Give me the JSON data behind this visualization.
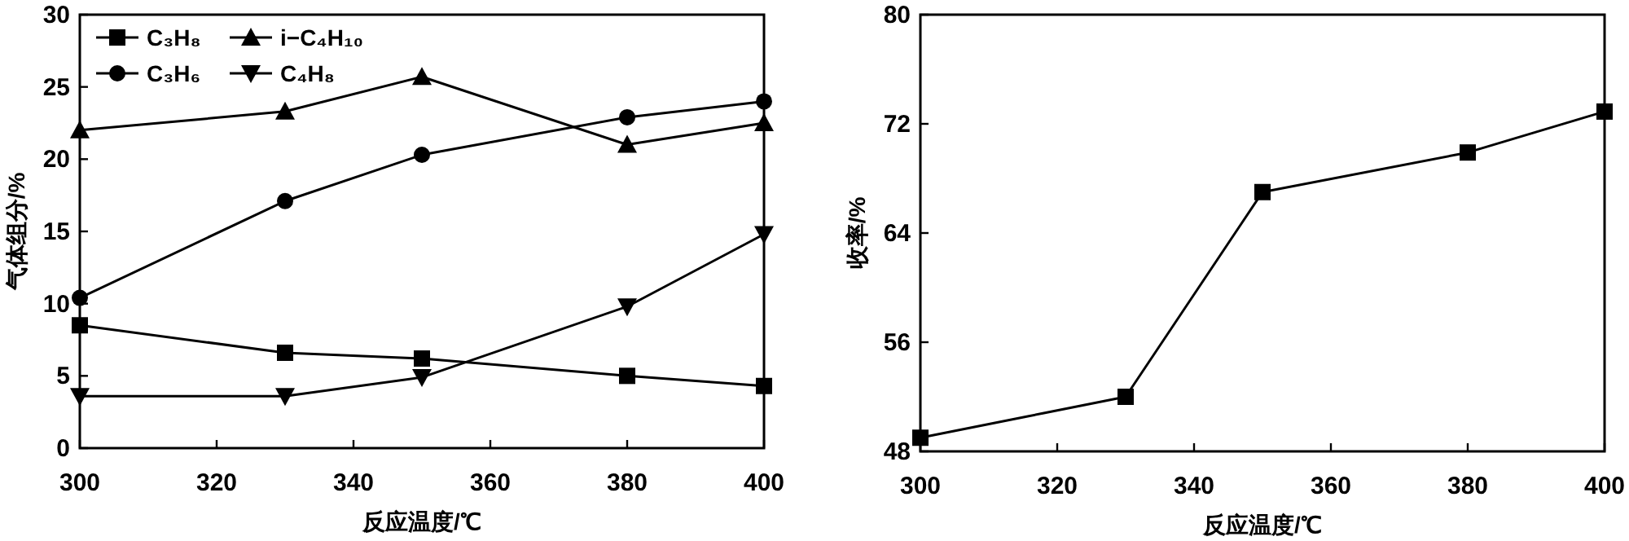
{
  "chart_data": [
    {
      "type": "line",
      "xlabel": "反应温度/℃",
      "ylabel": "气体组分/%",
      "x": [
        300,
        330,
        350,
        380,
        400
      ],
      "xlim": [
        300,
        400
      ],
      "xticks": [
        300,
        320,
        340,
        360,
        380,
        400
      ],
      "ylim": [
        0,
        30
      ],
      "yticks": [
        0,
        5,
        10,
        15,
        20,
        25,
        30
      ],
      "legend": "top left",
      "line_style": "solid",
      "series": [
        {
          "name": "C₃H₈",
          "color": "#000000",
          "marker": "square",
          "values": [
            8.5,
            6.6,
            6.2,
            5.0,
            4.3
          ]
        },
        {
          "name": "i−C₄H₁₀",
          "color": "#000000",
          "marker": "triangle",
          "values": [
            22.0,
            23.3,
            25.7,
            21.0,
            22.5
          ]
        },
        {
          "name": "C₃H₆",
          "color": "#000000",
          "marker": "circle",
          "values": [
            10.4,
            17.1,
            20.3,
            22.9,
            24.0
          ]
        },
        {
          "name": "C₄H₈",
          "color": "#000000",
          "marker": "triangle-down",
          "values": [
            3.6,
            3.6,
            4.9,
            9.8,
            14.8
          ]
        }
      ]
    },
    {
      "type": "line",
      "xlabel": "反应温度/℃",
      "ylabel": "收率/%",
      "x": [
        300,
        330,
        350,
        380,
        400
      ],
      "xlim": [
        300,
        400
      ],
      "xticks": [
        300,
        320,
        340,
        360,
        380,
        400
      ],
      "ylim": [
        48,
        80
      ],
      "yticks": [
        48,
        56,
        64,
        72,
        80
      ],
      "line_style": "solid",
      "series": [
        {
          "color": "#000000",
          "marker": "square",
          "values": [
            49.0,
            52.0,
            67.0,
            69.9,
            72.9
          ]
        }
      ]
    }
  ]
}
